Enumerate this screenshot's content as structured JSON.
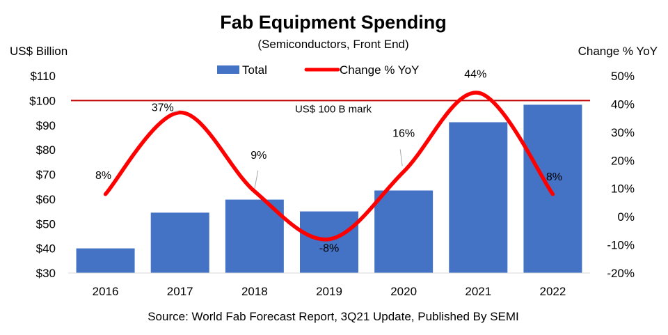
{
  "chart_data": {
    "type": "bar",
    "title": "Fab Equipment Spending",
    "subtitle": "(Semiconductors, Front End)",
    "ylabel": "US$ Billion",
    "y2label": "Change % YoY",
    "categories": [
      "2016",
      "2017",
      "2018",
      "2019",
      "2020",
      "2021",
      "2022"
    ],
    "ylim": [
      30,
      110
    ],
    "y_ticks": [
      30,
      40,
      50,
      60,
      70,
      80,
      90,
      100,
      110
    ],
    "y_tick_labels": [
      "$30",
      "$40",
      "$50",
      "$60",
      "$70",
      "$80",
      "$90",
      "$100",
      "$110"
    ],
    "y2lim": [
      -20,
      50
    ],
    "y2_ticks": [
      -20,
      -10,
      0,
      10,
      20,
      30,
      40,
      50
    ],
    "y2_tick_labels": [
      "-20%",
      "-10%",
      "0%",
      "10%",
      "20%",
      "30%",
      "40%",
      "50%"
    ],
    "series": [
      {
        "name": "Total",
        "type": "bar",
        "axis": "left",
        "color": "#4472C4",
        "values": [
          40,
          54.5,
          59.8,
          55,
          63.5,
          91.2,
          98.3
        ]
      },
      {
        "name": "Change % YoY",
        "type": "line",
        "axis": "right",
        "color": "#FF0000",
        "values": [
          8,
          37,
          9,
          -8,
          16,
          44,
          8
        ],
        "labels": [
          "8%",
          "37%",
          "9%",
          "-8%",
          "16%",
          "44%",
          "8%"
        ]
      }
    ],
    "reference_line": {
      "value": 100,
      "label": "US$ 100 B mark",
      "color": "#C00000"
    },
    "legend": "top-center",
    "grid": false,
    "source": "Source: World Fab Forecast Report, 3Q21 Update, Published By SEMI"
  }
}
